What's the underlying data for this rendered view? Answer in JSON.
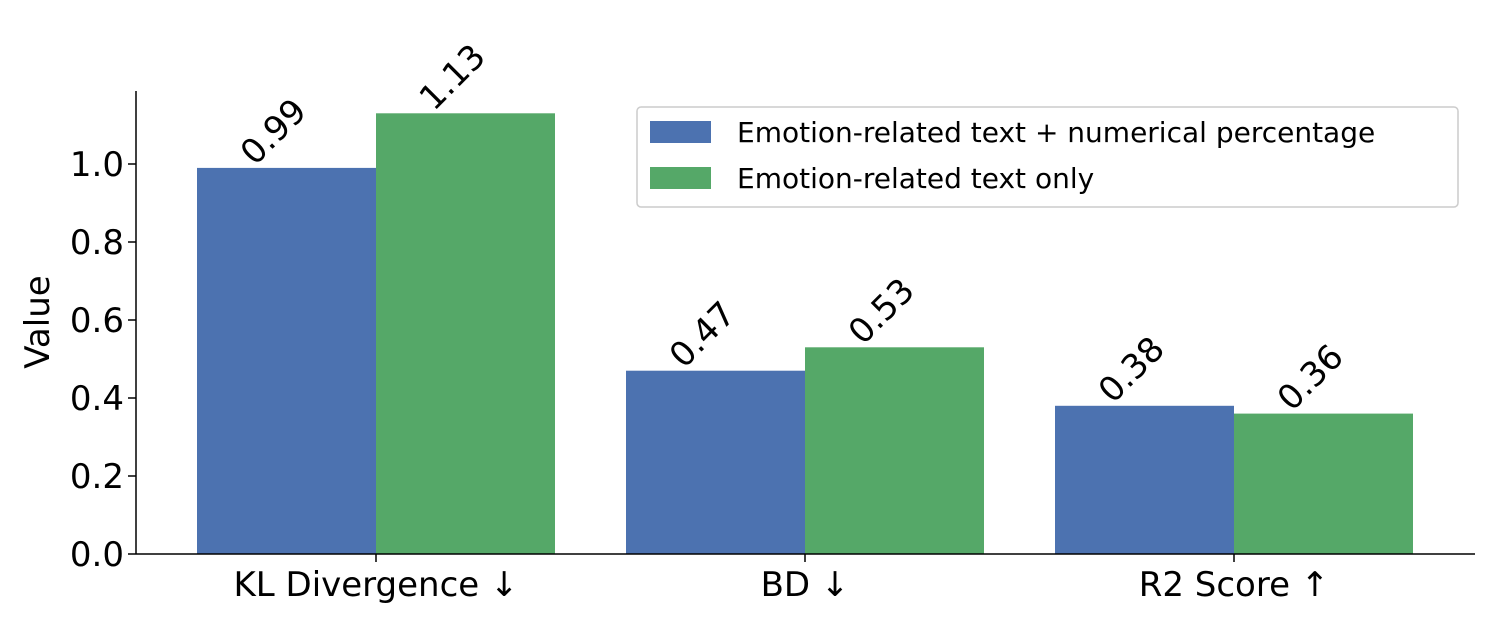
{
  "chart_data": {
    "type": "bar",
    "categories": [
      "KL Divergence ↓",
      "BD ↓",
      "R2 Score ↑"
    ],
    "series": [
      {
        "name": "Emotion-related text + numerical percentage",
        "values": [
          0.99,
          0.47,
          0.38
        ],
        "labels": [
          "0.99",
          "0.47",
          "0.38"
        ],
        "color": "#4c72b0"
      },
      {
        "name": "Emotion-related text only",
        "values": [
          1.13,
          0.53,
          0.36
        ],
        "labels": [
          "1.13",
          "0.53",
          "0.36"
        ],
        "color": "#55a868"
      }
    ],
    "xlabel": "",
    "ylabel": "Value",
    "ylim": [
      0,
      1.18
    ],
    "yticks": [
      0.0,
      0.2,
      0.4,
      0.6,
      0.8,
      1.0
    ],
    "ytick_labels": [
      "0.0",
      "0.2",
      "0.4",
      "0.6",
      "0.8",
      "1.0"
    ],
    "legend_position": "upper-right",
    "grid": false
  }
}
